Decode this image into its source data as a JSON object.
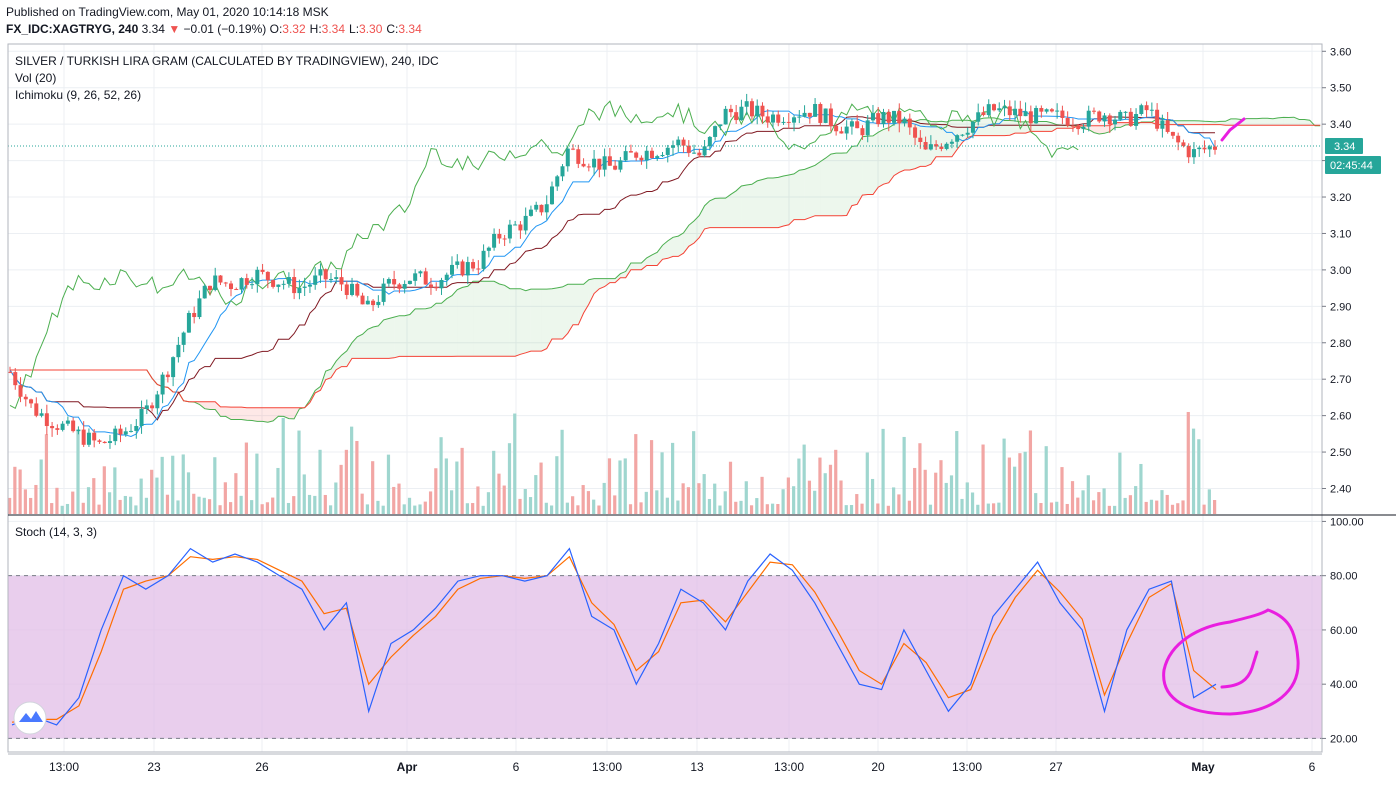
{
  "header": {
    "published": "Published on TradingView.com, May 01, 2020 10:14:18 MSK",
    "symbol": "FX_IDC:XAGTRYG, 240",
    "last": "3.34",
    "change": "−0.01 (−0.19%)",
    "ohlc": [
      {
        "k": "O:",
        "v": "3.32"
      },
      {
        "k": "H:",
        "v": "3.34"
      },
      {
        "k": "L:",
        "v": "3.30"
      },
      {
        "k": "C:",
        "v": "3.34"
      }
    ]
  },
  "legend": {
    "title": "SILVER / TURKISH LIRA GRAM (CALCULATED BY TRADINGVIEW), 240, IDC",
    "vol": "Vol (20)",
    "ichimoku": "Ichimoku (9, 26, 52, 26)",
    "stoch": "Stoch (14, 3, 3)"
  },
  "badges": {
    "price": "3.34",
    "countdown": "02:45:44"
  },
  "colors": {
    "up": "#26a69a",
    "down": "#ef5350",
    "conversion": "#2196f3",
    "base": "#801922",
    "leadA": "#4caf50",
    "leadB": "#f44336",
    "stochK": "#2962ff",
    "stochD": "#ff6d00",
    "stochBand": "#e1bee7",
    "annotation": "#e91ee0"
  },
  "chart_data": [
    {
      "type": "candlestick",
      "title": "SILVER / TURKISH LIRA GRAM (CALCULATED BY TRADINGVIEW), 240, IDC",
      "indicators": [
        "Vol (20)",
        "Ichimoku (9, 26, 52, 26)"
      ],
      "ylim": [
        2.33,
        3.62
      ],
      "y_ticks": [
        "3.60",
        "3.50",
        "3.40",
        "3.30",
        "3.20",
        "3.10",
        "3.00",
        "2.90",
        "2.80",
        "2.70",
        "2.60",
        "2.50",
        "2.40"
      ],
      "x_ticks": [
        "13:00",
        "23",
        "26",
        "Apr",
        "6",
        "13:00",
        "13",
        "13:00",
        "20",
        "13:00",
        "27",
        "May",
        "6"
      ],
      "close_path": [
        2.72,
        2.62,
        2.58,
        2.55,
        2.52,
        2.55,
        2.6,
        2.72,
        2.86,
        2.97,
        2.96,
        2.99,
        2.97,
        2.95,
        2.98,
        2.96,
        2.89,
        2.96,
        2.98,
        2.97,
        3.0,
        3.02,
        3.1,
        3.13,
        3.18,
        3.33,
        3.3,
        3.28,
        3.32,
        3.33,
        3.35,
        3.31,
        3.43,
        3.44,
        3.42,
        3.43,
        3.44,
        3.4,
        3.38,
        3.42,
        3.41,
        3.32,
        3.36,
        3.4,
        3.44,
        3.43,
        3.42,
        3.42,
        3.41,
        3.43,
        3.41,
        3.44,
        3.36,
        3.32,
        3.34
      ],
      "current_price": 3.34
    },
    {
      "type": "line",
      "title": "Stoch (14, 3, 3)",
      "ylim": [
        15,
        102
      ],
      "y_ticks": [
        "100.00",
        "80.00",
        "60.00",
        "40.00",
        "20.00"
      ],
      "bands": [
        20,
        80
      ],
      "series": [
        {
          "name": "%K",
          "values": [
            25,
            28,
            25,
            35,
            60,
            80,
            75,
            80,
            90,
            85,
            88,
            85,
            80,
            75,
            60,
            70,
            30,
            55,
            60,
            68,
            78,
            80,
            80,
            78,
            80,
            90,
            65,
            60,
            40,
            55,
            75,
            70,
            60,
            78,
            88,
            82,
            70,
            55,
            40,
            38,
            60,
            45,
            30,
            40,
            65,
            75,
            85,
            70,
            60,
            30,
            60,
            75,
            78,
            35,
            40
          ]
        },
        {
          "name": "%D",
          "values": [
            26,
            27,
            27,
            32,
            52,
            75,
            78,
            80,
            87,
            86,
            87,
            86,
            82,
            78,
            66,
            68,
            40,
            50,
            58,
            65,
            75,
            79,
            80,
            79,
            80,
            87,
            70,
            62,
            45,
            52,
            70,
            71,
            63,
            74,
            85,
            84,
            74,
            60,
            45,
            40,
            55,
            48,
            35,
            38,
            58,
            72,
            82,
            74,
            64,
            36,
            55,
            72,
            77,
            45,
            38
          ]
        }
      ]
    }
  ],
  "annotation": {
    "circle": "circled stochastic",
    "arrow": "up tick"
  }
}
